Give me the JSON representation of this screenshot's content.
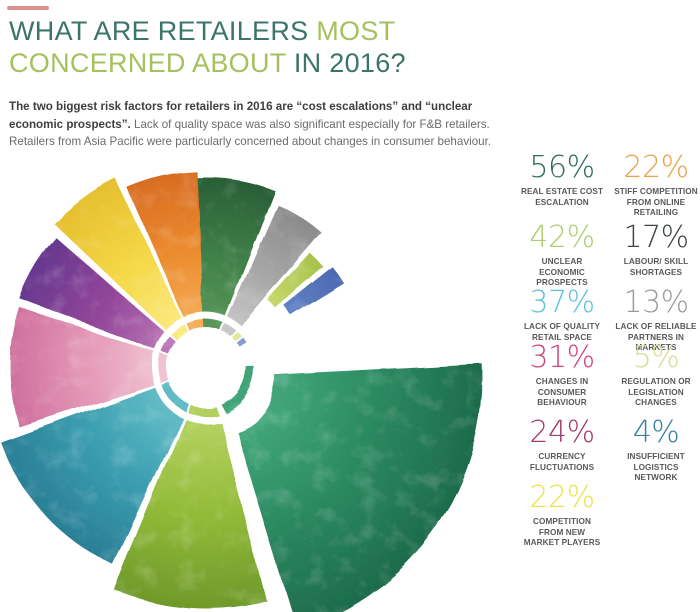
{
  "decoration": {
    "corner_mark_color": "#c0392b"
  },
  "header": {
    "title_line1": [
      {
        "text": "WHAT ARE RETAILERS ",
        "color": "#3b7468"
      },
      {
        "text": "MOST",
        "color": "#a7c05e"
      }
    ],
    "title_line2": [
      {
        "text": "CONCERNED ABOUT ",
        "color": "#a7c05e"
      },
      {
        "text": "IN 2016?",
        "color": "#3b7468"
      }
    ]
  },
  "intro": {
    "bold": "The two biggest risk factors for retailers in 2016 are “cost escalations” and “unclear economic prospects”.",
    "regular": " Lack of quality space was also significant especially for F&B retailers. Retailers from Asia Pacific were particularly concerned about changes in consumer behaviour."
  },
  "chart_data": {
    "type": "polar-rose",
    "unit": "%",
    "title": "What are retailers most concerned about in 2016?",
    "center": [
      206,
      220
    ],
    "inner_radius": 55,
    "sliver_radii": [
      40,
      48
    ],
    "grid": false,
    "legend_position": "right",
    "segments": [
      {
        "id": "labour-skill",
        "label": "LABOUR/ SKILL SHORTAGES",
        "value": 17,
        "a0": -3,
        "a1": 21.5,
        "r0": 55,
        "r1": 190,
        "explode": [
          0,
          0
        ],
        "light": "#579556",
        "base": "#3f7f48",
        "dark": "#295f36",
        "legend_color": "#3e4543"
      },
      {
        "id": "reliable-partners",
        "label": "LACK OF RELIABLE PARTNERS IN MARKETS",
        "value": 13,
        "a0": 24,
        "a1": 40.5,
        "r0": 55,
        "r1": 178,
        "explode": [
          0,
          0
        ],
        "light": "#c9c9c9",
        "base": "#a8a8a8",
        "dark": "#8b8b8b",
        "legend_color": "#9b9b9b"
      },
      {
        "id": "regulation-changes",
        "label": "REGULATION OR LEGISLATION CHANGES",
        "value": 5,
        "a0": 42.5,
        "a1": 49.5,
        "r0": 92,
        "r1": 155,
        "explode": [
          0,
          0
        ],
        "light": "#e3ea9e",
        "base": "#c5d76a",
        "dark": "#a8c24b",
        "legend_color": "#d9dd94"
      },
      {
        "id": "logistics-network",
        "label": "INSUFFICIENT LOGISTICS NETWORK",
        "value": 4,
        "a0": 51.5,
        "a1": 58.5,
        "r0": 100,
        "r1": 162,
        "explode": [
          0,
          0
        ],
        "light": "#87a1d6",
        "base": "#6283c5",
        "dark": "#4b69b2",
        "legend_color": "#35809f"
      },
      {
        "id": "real-estate-cost",
        "label": "REAL ESTATE COST ESCALATION",
        "value": 56,
        "a0": 87,
        "a1": 163,
        "r0": 55,
        "r1": 263,
        "explode": [
          14,
          10
        ],
        "light": "#3fa478",
        "base": "#2c8a61",
        "dark": "#1d6b4c",
        "legend_color": "#2f6a5e"
      },
      {
        "id": "unclear-economic",
        "label": "UNCLEAR ECONOMIC PROSPECTS",
        "value": 42,
        "a0": 165.5,
        "a1": 202.5,
        "r0": 55,
        "r1": 240,
        "explode": [
          0,
          0
        ],
        "light": "#b1d05e",
        "base": "#93bb39",
        "dark": "#6f9a2b",
        "legend_color": "#b2cb70"
      },
      {
        "id": "quality-retail-space",
        "label": "LACK OF QUALITY RETAIL SPACE",
        "value": 37,
        "a0": 205,
        "a1": 250,
        "r0": 55,
        "r1": 218,
        "explode": [
          0,
          0
        ],
        "light": "#62bcc6",
        "base": "#3c9fb1",
        "dark": "#2a7f96",
        "legend_color": "#5fc2dc"
      },
      {
        "id": "consumer-behaviour",
        "label": "CHANGES IN CONSUMER BEHAVIOUR",
        "value": 31,
        "a0": 252.5,
        "a1": 288,
        "r0": 55,
        "r1": 196,
        "explode": [
          0,
          0
        ],
        "light": "#efc3d1",
        "base": "#e59ab8",
        "dark": "#cf6f9d",
        "legend_color": "#d2427e"
      },
      {
        "id": "currency-fluctuations",
        "label": "CURRENCY FLUCTUATIONS",
        "value": 24,
        "a0": 290.5,
        "a1": 311,
        "r0": 55,
        "r1": 200,
        "explode": [
          0,
          0
        ],
        "light": "#b873b3",
        "base": "#93469a",
        "dark": "#66388f",
        "legend_color": "#a23a6d"
      },
      {
        "id": "new-market-players",
        "label": "COMPETITION FROM NEW MARKET PLAYERS",
        "value": 22,
        "a0": 313.5,
        "a1": 334.5,
        "r0": 55,
        "r1": 210,
        "explode": [
          0,
          0
        ],
        "light": "#fbe97f",
        "base": "#f5d847",
        "dark": "#e5bf2e",
        "legend_color": "#efe14d"
      },
      {
        "id": "online-retailing",
        "label": "STIFF COMPETITION FROM ONLINE RETAILING",
        "value": 22,
        "a0": 336.5,
        "a1": 357.5,
        "r0": 55,
        "r1": 196,
        "explode": [
          0,
          0
        ],
        "light": "#f5a953",
        "base": "#ec8c2f",
        "dark": "#d86c22",
        "legend_color": "#e8a349"
      }
    ],
    "legend_columns": [
      [
        4,
        5,
        6,
        7,
        8,
        9
      ],
      [
        10,
        0,
        1,
        2,
        3
      ]
    ]
  }
}
